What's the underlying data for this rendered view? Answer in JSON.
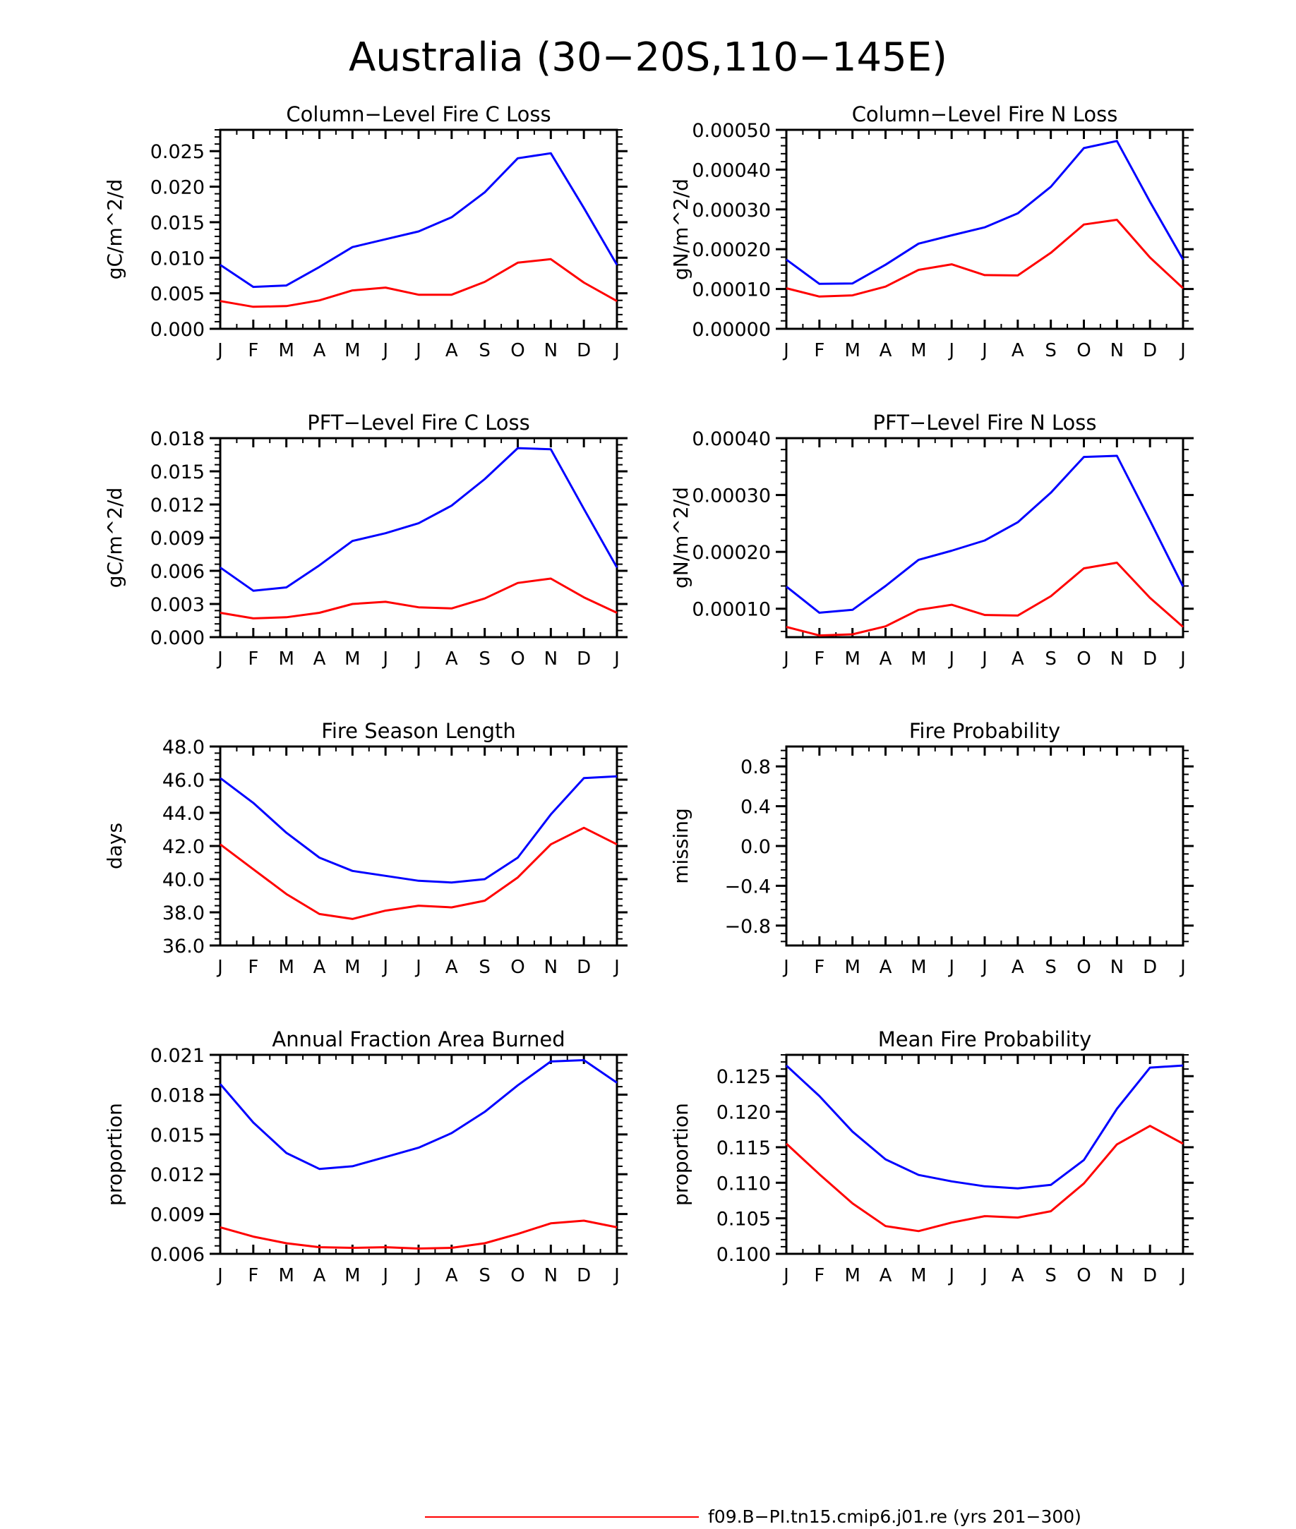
{
  "figure": {
    "title": "Australia (30−20S,110−145E)",
    "legend": [
      {
        "label": "f09.B−PI.tn15.cmip6.j01.re (yrs 201−300)",
        "color": "#ff0000"
      }
    ]
  },
  "months": [
    "J",
    "F",
    "M",
    "A",
    "M",
    "J",
    "J",
    "A",
    "S",
    "O",
    "N",
    "D",
    "J"
  ],
  "colors": {
    "series_a": "#0000ff",
    "series_b": "#ff0000",
    "axis": "#000000",
    "background": "#ffffff"
  },
  "chart_data": [
    {
      "type": "line",
      "title": "Column−Level Fire C Loss",
      "ylabel": "gC/m^2/d",
      "ylim": [
        0,
        0.028
      ],
      "yticks": [
        0.0,
        0.005,
        0.01,
        0.015,
        0.02,
        0.025
      ],
      "ytick_labels": [
        "0.000",
        "0.005",
        "0.010",
        "0.015",
        "0.020",
        "0.025"
      ],
      "categories": [
        "J",
        "F",
        "M",
        "A",
        "M",
        "J",
        "J",
        "A",
        "S",
        "O",
        "N",
        "D",
        "J"
      ],
      "series": [
        {
          "color": "#0000ff",
          "values": [
            0.009,
            0.0059,
            0.0061,
            0.0087,
            0.0115,
            0.0126,
            0.0137,
            0.0157,
            0.0192,
            0.024,
            0.0247,
            0.017,
            0.009
          ]
        },
        {
          "color": "#ff0000",
          "values": [
            0.0039,
            0.0031,
            0.0032,
            0.004,
            0.0054,
            0.0058,
            0.0048,
            0.0048,
            0.0066,
            0.0093,
            0.0098,
            0.0065,
            0.0039
          ]
        }
      ]
    },
    {
      "type": "line",
      "title": "Column−Level Fire N Loss",
      "ylabel": "gN/m^2/d",
      "ylim": [
        0,
        0.0005
      ],
      "yticks": [
        0.0,
        0.0001,
        0.0002,
        0.0003,
        0.0004,
        0.0005
      ],
      "ytick_labels": [
        "0.00000",
        "0.00010",
        "0.00020",
        "0.00030",
        "0.00040",
        "0.00050"
      ],
      "categories": [
        "J",
        "F",
        "M",
        "A",
        "M",
        "J",
        "J",
        "A",
        "S",
        "O",
        "N",
        "D",
        "J"
      ],
      "series": [
        {
          "color": "#0000ff",
          "values": [
            0.000174,
            0.000113,
            0.000114,
            0.000161,
            0.000214,
            0.000235,
            0.000255,
            0.00029,
            0.000357,
            0.000454,
            0.000472,
            0.000319,
            0.000174
          ]
        },
        {
          "color": "#ff0000",
          "values": [
            0.000102,
            8.1e-05,
            8.4e-05,
            0.000106,
            0.000148,
            0.000162,
            0.000135,
            0.000134,
            0.000191,
            0.000262,
            0.000274,
            0.000179,
            0.000102
          ]
        }
      ]
    },
    {
      "type": "line",
      "title": "PFT−Level Fire C Loss",
      "ylabel": "gC/m^2/d",
      "ylim": [
        0,
        0.018
      ],
      "yticks": [
        0.0,
        0.003,
        0.006,
        0.009,
        0.012,
        0.015,
        0.018
      ],
      "ytick_labels": [
        "0.000",
        "0.003",
        "0.006",
        "0.009",
        "0.012",
        "0.015",
        "0.018"
      ],
      "categories": [
        "J",
        "F",
        "M",
        "A",
        "M",
        "J",
        "J",
        "A",
        "S",
        "O",
        "N",
        "D",
        "J"
      ],
      "series": [
        {
          "color": "#0000ff",
          "values": [
            0.0063,
            0.0042,
            0.0045,
            0.0065,
            0.0087,
            0.0094,
            0.0103,
            0.0119,
            0.0143,
            0.0171,
            0.017,
            0.0116,
            0.0063
          ]
        },
        {
          "color": "#ff0000",
          "values": [
            0.0022,
            0.0017,
            0.0018,
            0.0022,
            0.003,
            0.0032,
            0.0027,
            0.0026,
            0.0035,
            0.0049,
            0.0053,
            0.0036,
            0.0022
          ]
        }
      ]
    },
    {
      "type": "line",
      "title": "PFT−Level Fire N Loss",
      "ylabel": "gN/m^2/d",
      "ylim": [
        5e-05,
        0.0004
      ],
      "yticks": [
        0.0001,
        0.0002,
        0.0003,
        0.0004
      ],
      "ytick_labels": [
        "0.00010",
        "0.00020",
        "0.00030",
        "0.00040"
      ],
      "categories": [
        "J",
        "F",
        "M",
        "A",
        "M",
        "J",
        "J",
        "A",
        "S",
        "O",
        "N",
        "D",
        "J"
      ],
      "series": [
        {
          "color": "#0000ff",
          "values": [
            0.000139,
            9.3e-05,
            9.8e-05,
            0.00014,
            0.000186,
            0.000202,
            0.00022,
            0.000252,
            0.000304,
            0.000367,
            0.000369,
            0.000255,
            0.000139
          ]
        },
        {
          "color": "#ff0000",
          "values": [
            6.8e-05,
            5.3e-05,
            5.5e-05,
            6.9e-05,
            9.8e-05,
            0.000107,
            8.9e-05,
            8.8e-05,
            0.000122,
            0.000171,
            0.000181,
            0.000119,
            6.8e-05
          ]
        }
      ]
    },
    {
      "type": "line",
      "title": "Fire Season Length",
      "ylabel": "days",
      "ylim": [
        36,
        48
      ],
      "yticks": [
        36,
        38,
        40,
        42,
        44,
        46,
        48
      ],
      "ytick_labels": [
        "36.0",
        "38.0",
        "40.0",
        "42.0",
        "44.0",
        "46.0",
        "48.0"
      ],
      "categories": [
        "J",
        "F",
        "M",
        "A",
        "M",
        "J",
        "J",
        "A",
        "S",
        "O",
        "N",
        "D",
        "J"
      ],
      "series": [
        {
          "color": "#0000ff",
          "values": [
            46.1,
            44.6,
            42.8,
            41.3,
            40.5,
            40.2,
            39.9,
            39.8,
            40.0,
            41.3,
            43.9,
            46.1,
            46.2
          ]
        },
        {
          "color": "#ff0000",
          "values": [
            42.1,
            40.6,
            39.1,
            37.9,
            37.6,
            38.1,
            38.4,
            38.3,
            38.7,
            40.1,
            42.1,
            43.1,
            42.1
          ]
        }
      ]
    },
    {
      "type": "line",
      "title": "Fire Probability",
      "ylabel": "missing",
      "ylim": [
        -1.0,
        1.0
      ],
      "yticks": [
        -0.8,
        -0.4,
        0.0,
        0.4,
        0.8
      ],
      "ytick_labels": [
        "−0.8",
        "−0.4",
        "0.0",
        "0.4",
        "0.8"
      ],
      "categories": [
        "J",
        "F",
        "M",
        "A",
        "M",
        "J",
        "J",
        "A",
        "S",
        "O",
        "N",
        "D",
        "J"
      ],
      "series": []
    },
    {
      "type": "line",
      "title": "Annual Fraction Area Burned",
      "ylabel": "proportion",
      "ylim": [
        0.006,
        0.021
      ],
      "yticks": [
        0.006,
        0.009,
        0.012,
        0.015,
        0.018,
        0.021
      ],
      "ytick_labels": [
        "0.006",
        "0.009",
        "0.012",
        "0.015",
        "0.018",
        "0.021"
      ],
      "categories": [
        "J",
        "F",
        "M",
        "A",
        "M",
        "J",
        "J",
        "A",
        "S",
        "O",
        "N",
        "D",
        "J"
      ],
      "series": [
        {
          "color": "#0000ff",
          "values": [
            0.0188,
            0.0159,
            0.0136,
            0.0124,
            0.0126,
            0.0133,
            0.014,
            0.0151,
            0.0167,
            0.0187,
            0.0205,
            0.0206,
            0.0189
          ]
        },
        {
          "color": "#ff0000",
          "values": [
            0.008,
            0.0073,
            0.0068,
            0.0065,
            0.00645,
            0.0065,
            0.0064,
            0.00645,
            0.0068,
            0.0075,
            0.0083,
            0.0085,
            0.008
          ]
        }
      ]
    },
    {
      "type": "line",
      "title": "Mean Fire Probability",
      "ylabel": "proportion",
      "ylim": [
        0.1,
        0.128
      ],
      "yticks": [
        0.1,
        0.105,
        0.11,
        0.115,
        0.12,
        0.125
      ],
      "ytick_labels": [
        "0.100",
        "0.105",
        "0.110",
        "0.115",
        "0.120",
        "0.125"
      ],
      "categories": [
        "J",
        "F",
        "M",
        "A",
        "M",
        "J",
        "J",
        "A",
        "S",
        "O",
        "N",
        "D",
        "J"
      ],
      "series": [
        {
          "color": "#0000ff",
          "values": [
            0.1265,
            0.1222,
            0.1172,
            0.1133,
            0.1111,
            0.1102,
            0.1095,
            0.1092,
            0.1097,
            0.1132,
            0.1204,
            0.1262,
            0.1265
          ]
        },
        {
          "color": "#ff0000",
          "values": [
            0.1155,
            0.1112,
            0.1071,
            0.1039,
            0.1032,
            0.1044,
            0.1053,
            0.1051,
            0.106,
            0.1099,
            0.1154,
            0.118,
            0.1155
          ]
        }
      ]
    }
  ]
}
